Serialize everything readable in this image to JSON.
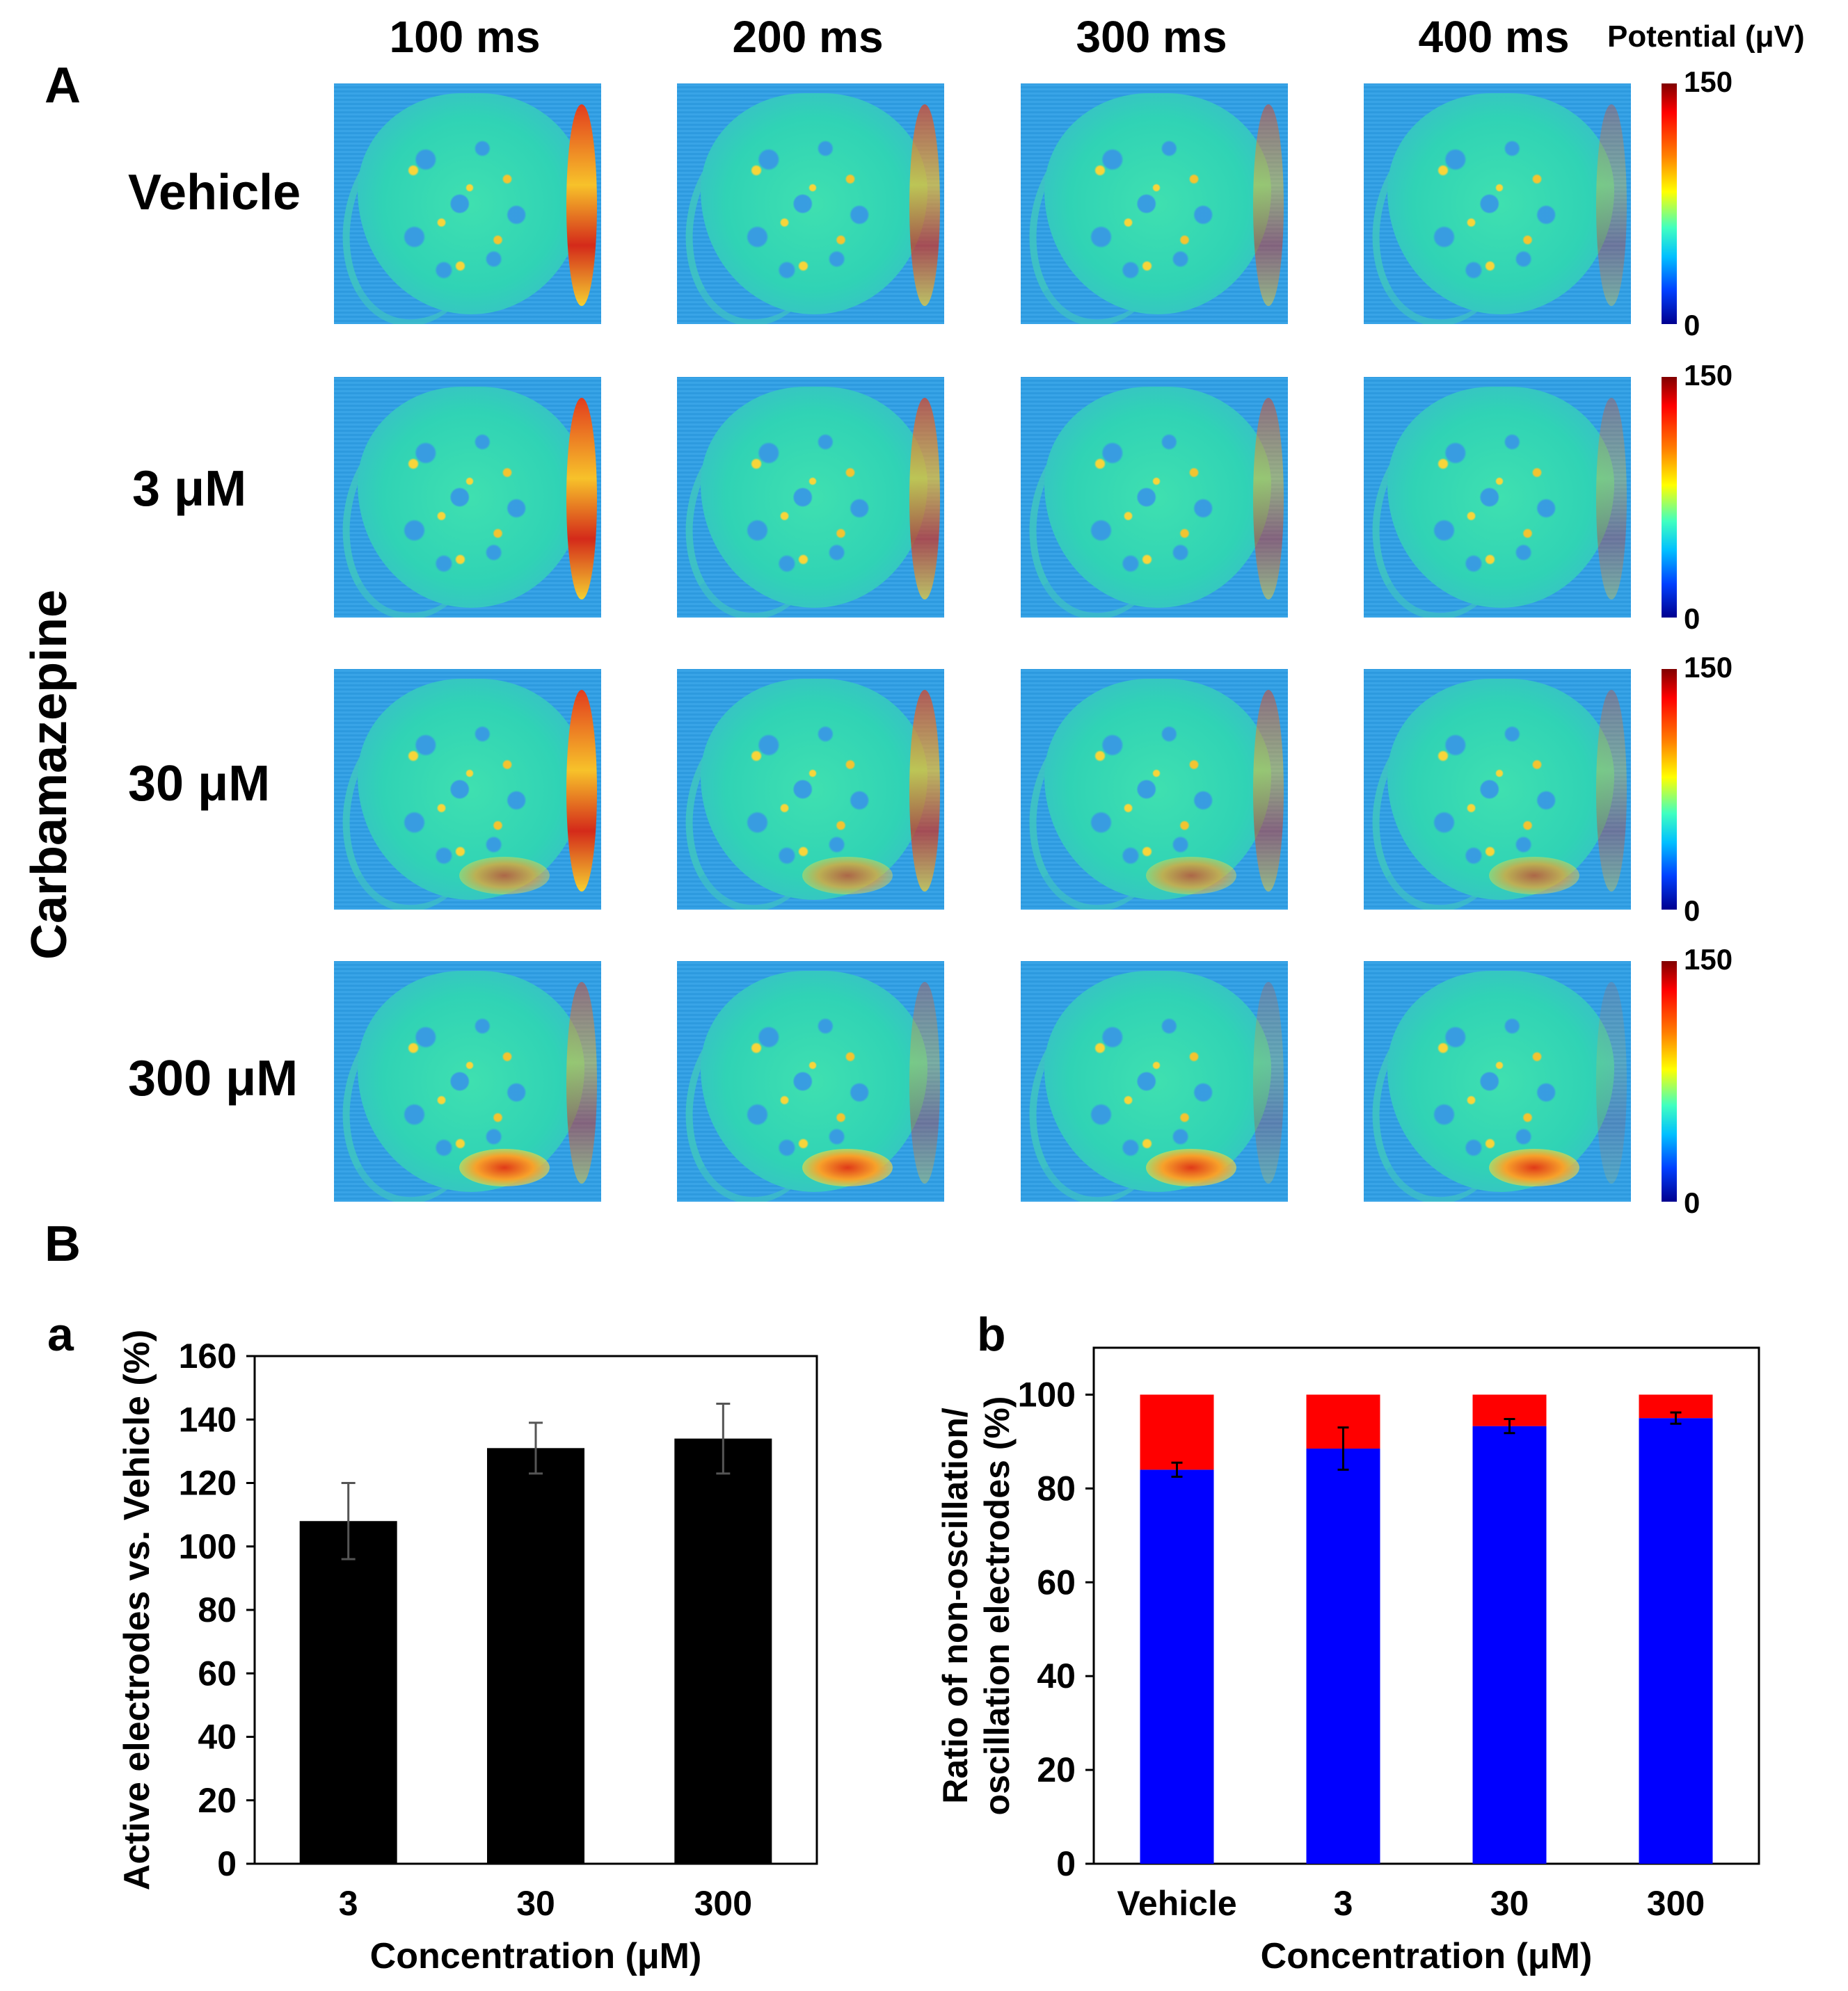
{
  "figure": {
    "panel_a_letter": "A",
    "panel_b_letter": "B",
    "side_label": "Carbamazepine",
    "time_points": [
      "100 ms",
      "200 ms",
      "300 ms",
      "400 ms"
    ],
    "conditions": [
      "Vehicle",
      "3 μM",
      "30 μM",
      "300 μM"
    ],
    "colorbar": {
      "title": "Potential (μV)",
      "max_label": "150",
      "min_label": "0"
    },
    "colors": {
      "bar_black": "#000000",
      "blue": "#0000ff",
      "red": "#ff0000"
    }
  },
  "chart_data": [
    {
      "id": "a",
      "panel_label": "a",
      "type": "bar",
      "categories": [
        "3",
        "30",
        "300"
      ],
      "values": [
        108,
        131,
        134
      ],
      "errors": [
        12,
        8,
        11
      ],
      "xlabel": "Concentration (μM)",
      "ylabel": "Active electrodes vs. Vehicle (%)",
      "ylim": [
        0,
        160
      ],
      "yticks": [
        "0",
        "20",
        "40",
        "60",
        "80",
        "100",
        "120",
        "140",
        "160"
      ],
      "ytick_values": [
        0,
        20,
        40,
        60,
        80,
        100,
        120,
        140,
        160
      ]
    },
    {
      "id": "b",
      "panel_label": "b",
      "type": "bar",
      "stacked": true,
      "categories": [
        "Vehicle",
        "3",
        "30",
        "300"
      ],
      "series": [
        {
          "name": "non-oscillation",
          "color": "#0000ff",
          "values": [
            84,
            88.5,
            93.3,
            95
          ]
        },
        {
          "name": "oscillation",
          "color": "#ff0000",
          "values": [
            16,
            11.5,
            6.7,
            5
          ]
        }
      ],
      "errors": [
        1.5,
        4.5,
        1.5,
        1.2
      ],
      "xlabel": "Concentration (μM)",
      "ylabel_line1": "Ratio of non-oscillation/",
      "ylabel_line2": "oscillation electrodes (%)",
      "ylim": [
        0,
        110
      ],
      "yticks": [
        "0",
        "20",
        "40",
        "60",
        "80",
        "100"
      ],
      "ytick_values": [
        0,
        20,
        40,
        60,
        80,
        100
      ]
    }
  ]
}
